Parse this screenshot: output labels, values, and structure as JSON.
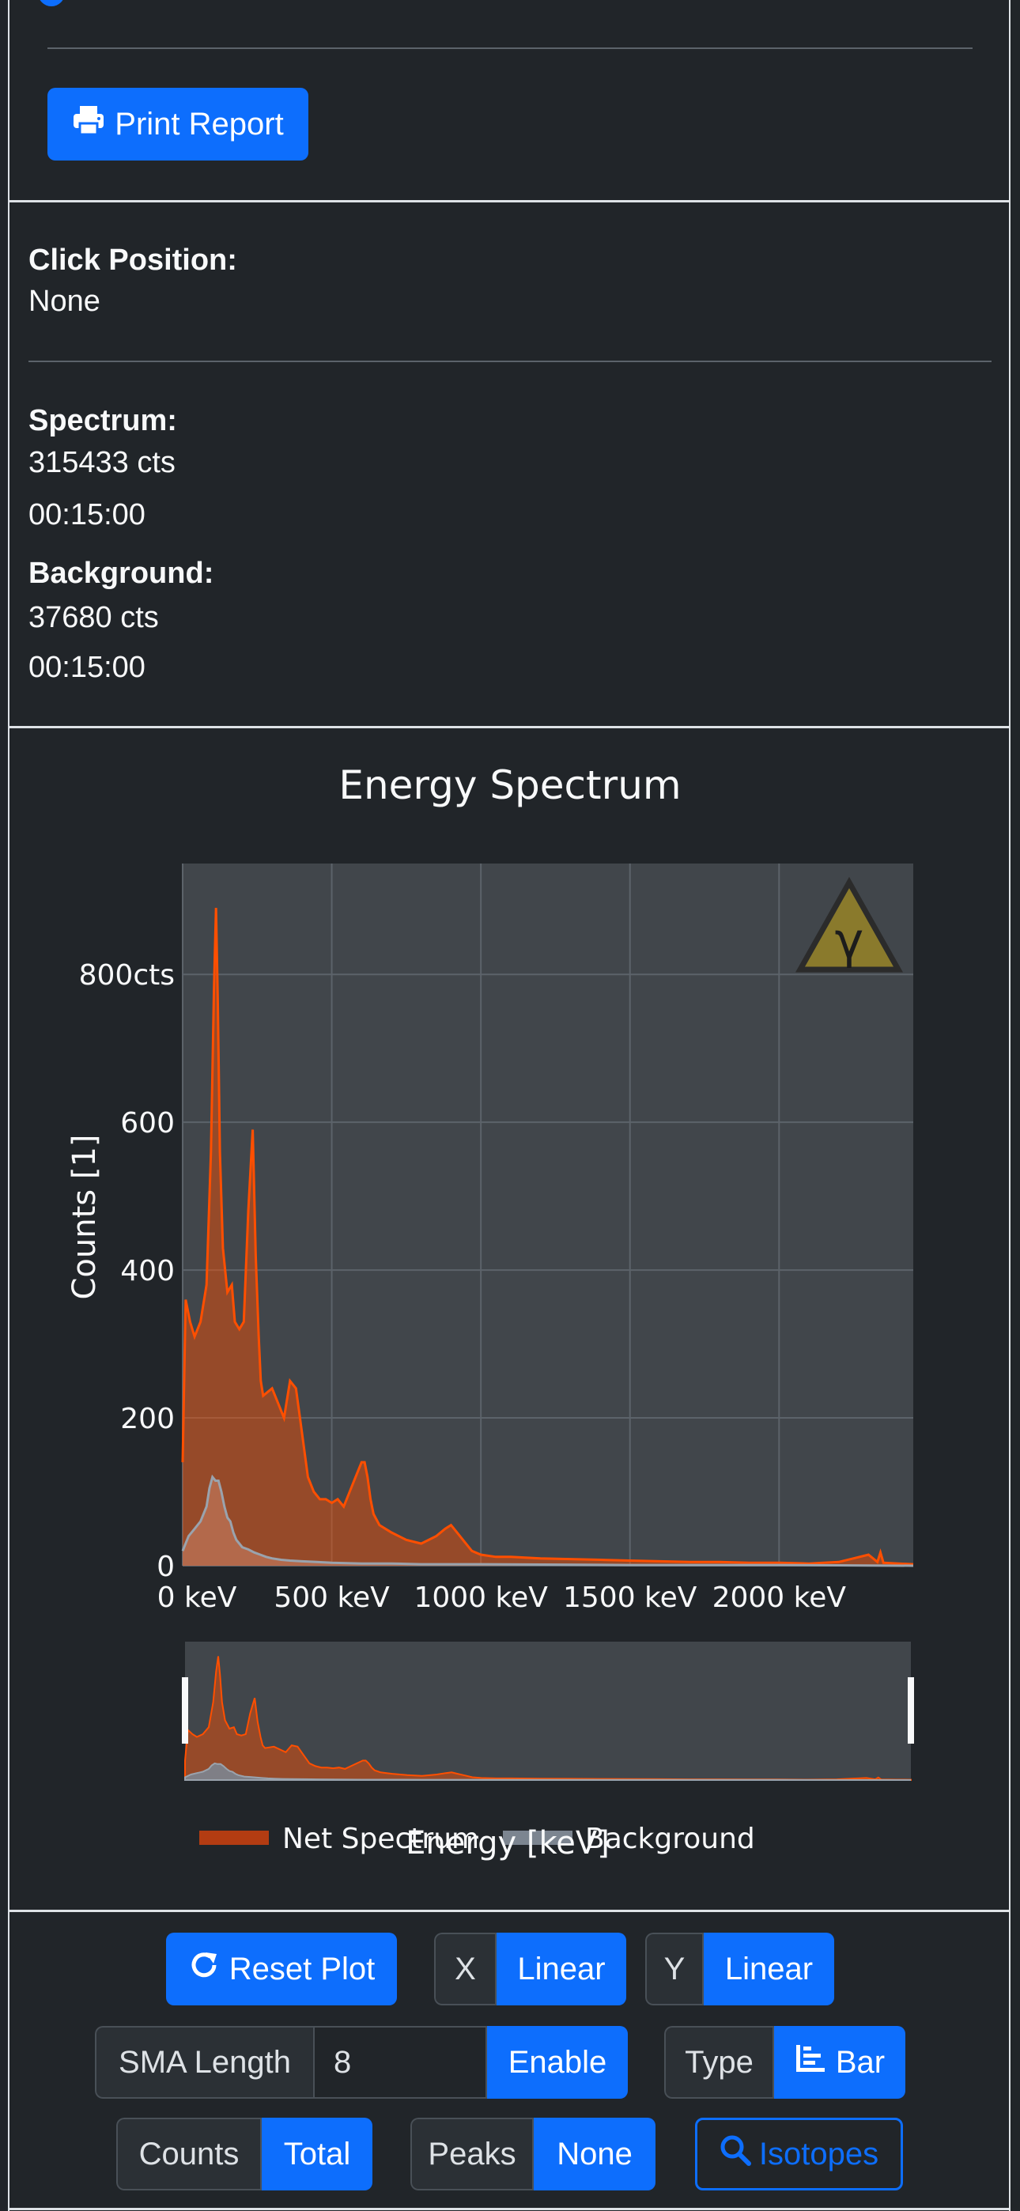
{
  "print_report_label": "Print Report",
  "click_position": {
    "label": "Click Position:",
    "value": "None"
  },
  "spectrum": {
    "label": "Spectrum:",
    "counts": "315433 cts",
    "time": "00:15:00"
  },
  "background": {
    "label": "Background:",
    "counts": "37680 cts",
    "time": "00:15:00"
  },
  "colors": {
    "net": "#ff4f00",
    "background": "#7c8590",
    "plot_bg": "#41464b",
    "accent": "#0d6efd"
  },
  "chart_data": {
    "type": "area",
    "title": "Energy Spectrum",
    "xlabel": "Energy [keV]",
    "ylabel": "Counts [1]",
    "xlim": [
      0,
      2450
    ],
    "ylim": [
      0,
      950
    ],
    "x_ticks": [
      "0 keV",
      "500 keV",
      "1000 keV",
      "1500 keV",
      "2000 keV"
    ],
    "x_tick_values": [
      0,
      500,
      1000,
      1500,
      2000
    ],
    "y_ticks": [
      "0",
      "200",
      "400",
      "600",
      "800cts"
    ],
    "y_tick_values": [
      0,
      200,
      400,
      600,
      800
    ],
    "legend": {
      "position": "bottom",
      "entries": [
        "Net Spectrum",
        "Background"
      ]
    },
    "series": [
      {
        "name": "Net Spectrum",
        "x": [
          0,
          10,
          25,
          40,
          60,
          80,
          95,
          105,
          112,
          118,
          125,
          135,
          150,
          165,
          175,
          190,
          205,
          220,
          235,
          245,
          255,
          262,
          270,
          285,
          300,
          320,
          340,
          360,
          380,
          400,
          420,
          440,
          460,
          480,
          500,
          520,
          540,
          560,
          580,
          600,
          610,
          620,
          630,
          640,
          660,
          680,
          700,
          750,
          800,
          850,
          880,
          900,
          920,
          940,
          970,
          1000,
          1050,
          1100,
          1200,
          1300,
          1400,
          1500,
          1600,
          1700,
          1800,
          1900,
          2000,
          2100,
          2200,
          2250,
          2300,
          2330,
          2340,
          2350,
          2400,
          2450
        ],
        "y": [
          140,
          360,
          330,
          310,
          330,
          380,
          560,
          780,
          890,
          760,
          560,
          430,
          370,
          380,
          330,
          320,
          330,
          480,
          590,
          420,
          310,
          250,
          230,
          235,
          240,
          220,
          200,
          250,
          240,
          180,
          120,
          100,
          90,
          90,
          85,
          90,
          80,
          100,
          120,
          140,
          140,
          120,
          90,
          70,
          55,
          50,
          45,
          35,
          30,
          40,
          50,
          55,
          45,
          35,
          20,
          15,
          12,
          12,
          10,
          9,
          8,
          7,
          6,
          5,
          5,
          4,
          4,
          3,
          5,
          10,
          15,
          5,
          18,
          4,
          3,
          2
        ]
      },
      {
        "name": "Background",
        "x": [
          0,
          20,
          40,
          60,
          80,
          90,
          100,
          110,
          120,
          130,
          140,
          150,
          160,
          170,
          180,
          190,
          200,
          220,
          240,
          260,
          280,
          300,
          330,
          360,
          400,
          450,
          500,
          600,
          700,
          800,
          1000,
          1500,
          2000,
          2450
        ],
        "y": [
          20,
          40,
          50,
          60,
          80,
          105,
          120,
          115,
          115,
          100,
          80,
          65,
          60,
          45,
          35,
          30,
          25,
          22,
          18,
          15,
          12,
          10,
          8,
          7,
          6,
          5,
          4,
          3,
          3,
          2,
          2,
          1,
          1,
          0
        ]
      }
    ]
  },
  "controls": {
    "reset_label": "Reset Plot",
    "x_label": "X",
    "x_value": "Linear",
    "y_label": "Y",
    "y_value": "Linear",
    "sma_label": "SMA Length",
    "sma_value": "8",
    "sma_enable": "Enable",
    "type_label": "Type",
    "type_value": "Bar",
    "counts_label": "Counts",
    "counts_value": "Total",
    "peaks_label": "Peaks",
    "peaks_value": "None",
    "isotopes_label": "Isotopes"
  }
}
